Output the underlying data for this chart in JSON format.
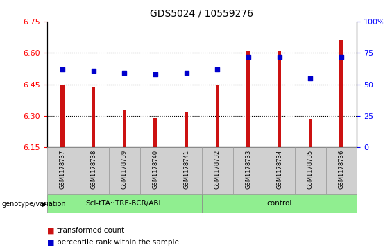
{
  "title": "GDS5024 / 10559276",
  "samples": [
    "GSM1178737",
    "GSM1178738",
    "GSM1178739",
    "GSM1178740",
    "GSM1178741",
    "GSM1178732",
    "GSM1178733",
    "GSM1178734",
    "GSM1178735",
    "GSM1178736"
  ],
  "transformed_count": [
    6.448,
    6.435,
    6.328,
    6.291,
    6.318,
    6.448,
    6.608,
    6.61,
    6.286,
    6.665
  ],
  "percentile_rank": [
    62,
    61,
    59,
    58,
    59,
    62,
    72,
    72,
    55,
    72
  ],
  "group1_label": "Scl-tTA::TRE-BCR/ABL",
  "group2_label": "control",
  "group1_indices": [
    0,
    1,
    2,
    3,
    4
  ],
  "group2_indices": [
    5,
    6,
    7,
    8,
    9
  ],
  "green_color": "#90ee90",
  "gray_color": "#d0d0d0",
  "ylim_left": [
    6.15,
    6.75
  ],
  "ylim_right": [
    0,
    100
  ],
  "y_ticks_left": [
    6.15,
    6.3,
    6.45,
    6.6,
    6.75
  ],
  "y_ticks_right": [
    0,
    25,
    50,
    75,
    100
  ],
  "y_tick_right_labels": [
    "0",
    "25",
    "50",
    "75",
    "100%"
  ],
  "bar_color": "#cc1111",
  "dot_color": "#0000cc",
  "bar_width": 0.12,
  "bar_bottom": 6.15,
  "legend_tc": "transformed count",
  "legend_pr": "percentile rank within the sample",
  "genotype_label": "genotype/variation",
  "grid_lines": [
    6.3,
    6.45,
    6.6
  ]
}
